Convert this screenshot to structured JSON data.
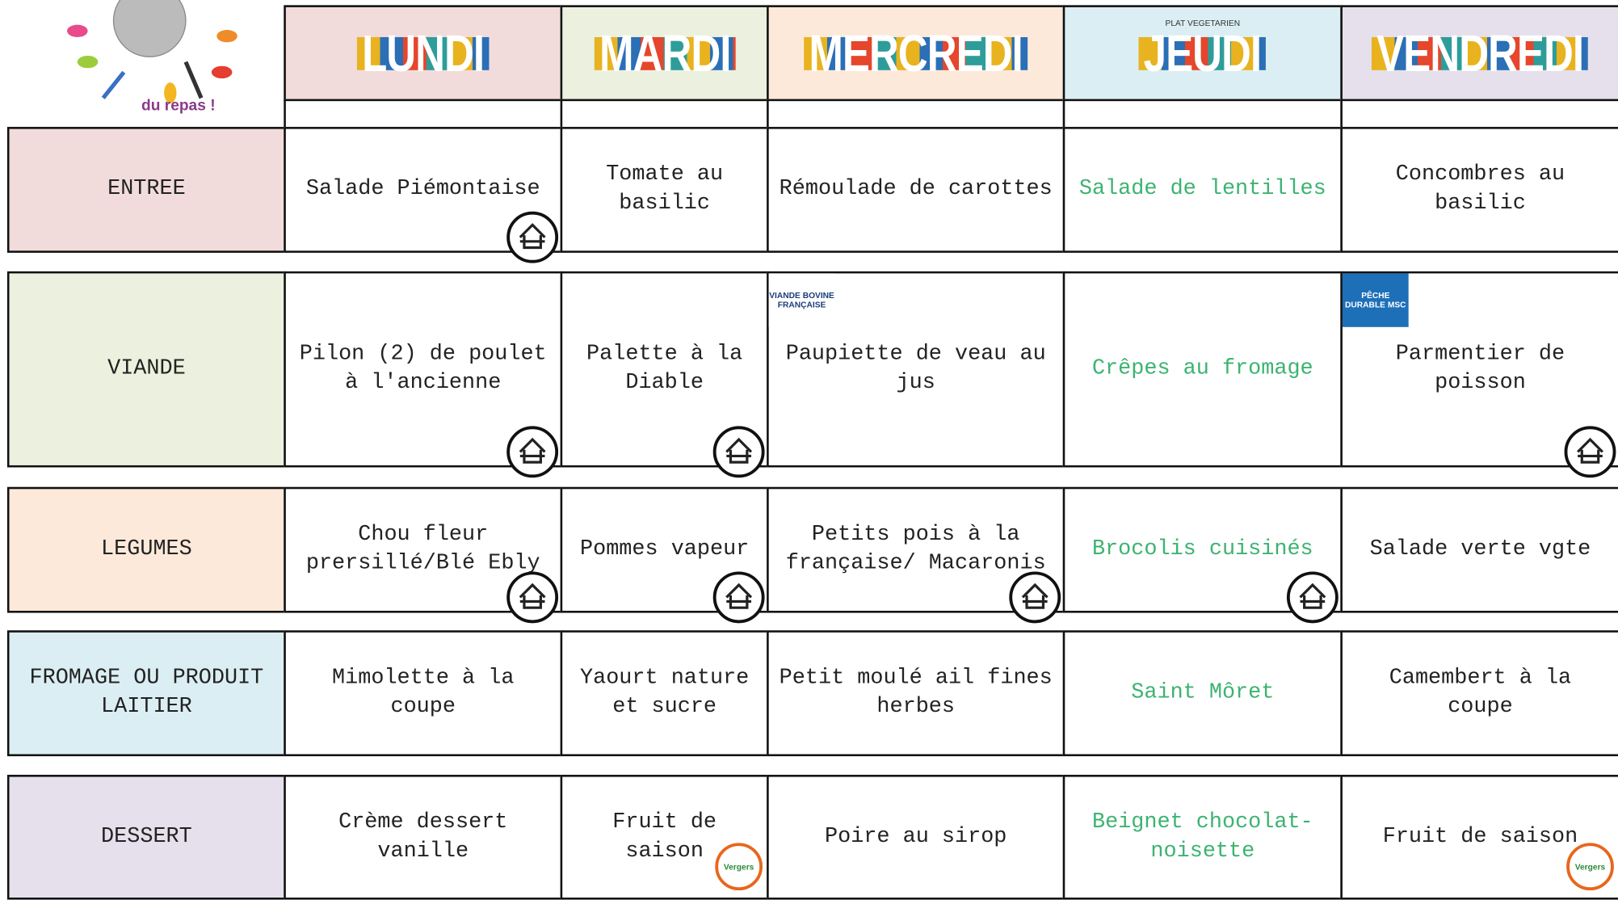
{
  "header": {
    "logo_text": "du repas !",
    "days": [
      {
        "name": "LUNDI",
        "color": "#f1dcdb"
      },
      {
        "name": "MARDI",
        "color": "#ebf1de"
      },
      {
        "name": "MERCREDI",
        "color": "#fde9d9"
      },
      {
        "name": "JEUDI",
        "color": "#dbeef3",
        "note": "PLAT VEGETARIEN"
      },
      {
        "name": "VENDREDI",
        "color": "#e5e0ec"
      }
    ]
  },
  "rows": [
    {
      "label": "ENTREE",
      "color": "#f1dcdb",
      "cells": [
        {
          "text": "Salade Piémontaise",
          "homemade": true
        },
        {
          "text": "Tomate au basilic"
        },
        {
          "text": "Rémoulade de carottes"
        },
        {
          "text": "Salade de lentilles",
          "color": "#3cb371"
        },
        {
          "text": "Concombres au basilic"
        }
      ]
    },
    {
      "label": "VIANDE",
      "color": "#ebf1de",
      "cells": [
        {
          "text": "Pilon (2) de poulet à l'ancienne",
          "homemade": true
        },
        {
          "text": "Palette à la Diable",
          "homemade": true
        },
        {
          "text": "Paupiette de veau au jus",
          "badge": "VIANDE BOVINE FRANÇAISE"
        },
        {
          "text": "Crêpes au fromage",
          "color": "#3cb371"
        },
        {
          "text": "Parmentier de poisson",
          "homemade": true,
          "badge": "PÊCHE DURABLE MSC"
        }
      ]
    },
    {
      "label": "LEGUMES",
      "color": "#fde9d9",
      "cells": [
        {
          "text": "Chou fleur prersillé/Blé Ebly",
          "homemade": true
        },
        {
          "text": "Pommes vapeur",
          "homemade": true
        },
        {
          "text": "Petits pois à la française/ Macaronis",
          "homemade": true
        },
        {
          "text": "Brocolis cuisinés",
          "color": "#3cb371",
          "homemade": true
        },
        {
          "text": "Salade verte vgte"
        }
      ]
    },
    {
      "label": "FROMAGE OU PRODUIT LAITIER",
      "color": "#dbeef3",
      "cells": [
        {
          "text": "Mimolette à la coupe"
        },
        {
          "text": "Yaourt nature et sucre"
        },
        {
          "text": "Petit moulé ail fines herbes"
        },
        {
          "text": "Saint Môret",
          "color": "#3cb371"
        },
        {
          "text": "Camembert à la coupe"
        }
      ]
    },
    {
      "label": "DESSERT",
      "color": "#e5e0ec",
      "cells": [
        {
          "text": "Crème dessert vanille"
        },
        {
          "text": "Fruit de saison",
          "badge": "Vergers"
        },
        {
          "text": "Poire au sirop"
        },
        {
          "text": "Beignet chocolat-noisette",
          "color": "#3cb371"
        },
        {
          "text": "Fruit de saison",
          "badge": "Vergers"
        }
      ]
    }
  ]
}
